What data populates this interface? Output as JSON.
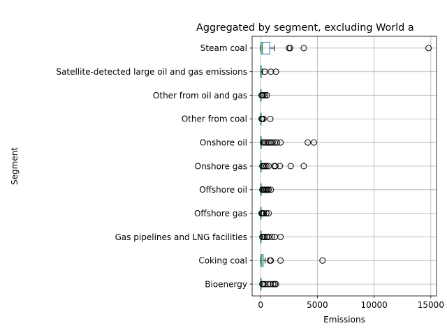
{
  "chart_data": {
    "type": "boxplot",
    "orientation": "horizontal",
    "title": "Aggregated by segment, excluding World a",
    "xlabel": "Emissions",
    "ylabel": "Segment",
    "xlim": [
      -750,
      15500
    ],
    "xticks": [
      0,
      5000,
      10000,
      15000
    ],
    "xtick_labels": [
      "0",
      "5000",
      "10000",
      "15000"
    ],
    "grid": true,
    "colors": {
      "box": "#1f77b4",
      "median": "#2ca02c",
      "whisker": "#000000",
      "grid": "#b0b0b0"
    },
    "categories": [
      "Bioenergy",
      "Coking coal",
      "Gas pipelines and LNG facilities",
      "Offshore gas",
      "Offshore oil",
      "Onshore gas",
      "Onshore oil",
      "Other from coal",
      "Other from oil and gas",
      "Satellite-detected large oil and gas emissions",
      "Steam coal"
    ],
    "series": [
      {
        "category": "Bioenergy",
        "whisker_low": 0,
        "q1": 2,
        "median": 8,
        "q3": 30,
        "whisker_high": 80,
        "outliers": [
          150,
          250,
          400,
          650,
          850,
          1100,
          1250,
          1350
        ]
      },
      {
        "category": "Coking coal",
        "whisker_low": 0,
        "q1": 30,
        "median": 100,
        "q3": 230,
        "whisker_high": 400,
        "outliers": [
          800,
          900,
          1750,
          5450
        ]
      },
      {
        "category": "Gas pipelines and LNG facilities",
        "whisker_low": 0,
        "q1": 2,
        "median": 10,
        "q3": 40,
        "whisker_high": 100,
        "outliers": [
          150,
          250,
          400,
          550,
          700,
          1000,
          1250,
          1750
        ]
      },
      {
        "category": "Offshore gas",
        "whisker_low": 0,
        "q1": 2,
        "median": 8,
        "q3": 25,
        "whisker_high": 60,
        "outliers": [
          80,
          120,
          180,
          300,
          500,
          700
        ]
      },
      {
        "category": "Offshore oil",
        "whisker_low": 0,
        "q1": 3,
        "median": 10,
        "q3": 40,
        "whisker_high": 100,
        "outliers": [
          150,
          200,
          300,
          400,
          500,
          600,
          700,
          900
        ]
      },
      {
        "category": "Onshore gas",
        "whisker_low": 0,
        "q1": 2,
        "median": 10,
        "q3": 35,
        "whisker_high": 90,
        "outliers": [
          150,
          250,
          350,
          500,
          700,
          1200,
          1300,
          1700,
          2650,
          3800
        ]
      },
      {
        "category": "Onshore oil",
        "whisker_low": 0,
        "q1": 3,
        "median": 15,
        "q3": 50,
        "whisker_high": 120,
        "outliers": [
          200,
          300,
          450,
          600,
          750,
          900,
          1050,
          1250,
          1450,
          1750,
          4150,
          4700
        ]
      },
      {
        "category": "Other from coal",
        "whisker_low": 0,
        "q1": 1,
        "median": 5,
        "q3": 20,
        "whisker_high": 50,
        "outliers": [
          80,
          150,
          250,
          850
        ]
      },
      {
        "category": "Other from oil and gas",
        "whisker_low": 0,
        "q1": 1,
        "median": 5,
        "q3": 20,
        "whisker_high": 50,
        "outliers": [
          80,
          150,
          250,
          400,
          550
        ]
      },
      {
        "category": "Satellite-detected large oil and gas emissions",
        "whisker_low": 0,
        "q1": 5,
        "median": 20,
        "q3": 60,
        "whisker_high": 150,
        "outliers": [
          350,
          900,
          1350
        ]
      },
      {
        "category": "Steam coal",
        "whisker_low": 0,
        "q1": 50,
        "median": 150,
        "q3": 800,
        "whisker_high": 1200,
        "outliers": [
          2500,
          2600,
          3800,
          14800
        ]
      }
    ]
  }
}
